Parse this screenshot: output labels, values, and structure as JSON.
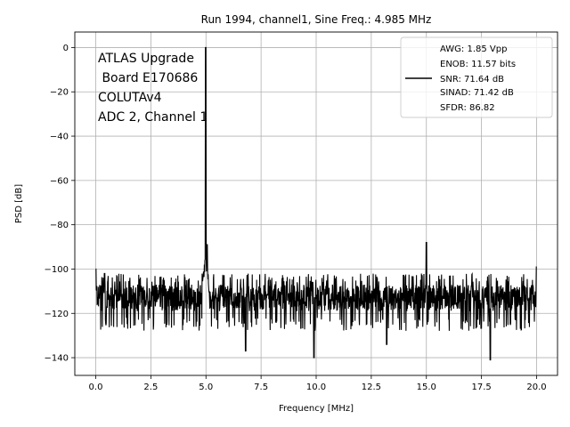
{
  "chart_data": {
    "type": "line",
    "title": "Run 1994, channel1, Sine Freq.: 4.985 MHz",
    "xlabel": "Frequency [MHz]",
    "ylabel": "PSD [dB]",
    "xlim": [
      -0.95,
      20.95
    ],
    "ylim": [
      -148,
      7
    ],
    "xticks": [
      0.0,
      2.5,
      5.0,
      7.5,
      10.0,
      12.5,
      15.0,
      17.5,
      20.0
    ],
    "xtick_labels": [
      "0.0",
      "2.5",
      "5.0",
      "7.5",
      "10.0",
      "12.5",
      "15.0",
      "17.5",
      "20.0"
    ],
    "yticks": [
      0,
      -20,
      -40,
      -60,
      -80,
      -100,
      -120,
      -140
    ],
    "ytick_labels": [
      "0",
      "−20",
      "−40",
      "−60",
      "−80",
      "−100",
      "−120",
      "−140"
    ],
    "grid": true,
    "annotation": [
      "ATLAS Upgrade",
      " Board E170686",
      "COLUTAv4",
      "ADC 2, Channel 1"
    ],
    "legend": {
      "placement": "top-right",
      "lines": [
        "AWG: 1.85 Vpp",
        "ENOB: 11.57 bits",
        "SNR: 71.64 dB",
        "SINAD: 71.42 dB",
        "SFDR: 86.82"
      ]
    },
    "series": [
      {
        "color": "#000000",
        "x_range": [
          0,
          20
        ],
        "noise_floor_mean": -113,
        "noise_floor_band": [
          -128,
          -102
        ],
        "peaks": [
          {
            "x": 4.985,
            "y": 0
          },
          {
            "x": 5.05,
            "y": -89
          },
          {
            "x": 15.0,
            "y": -88
          },
          {
            "x": 20.0,
            "y": -99
          },
          {
            "x": 0.4,
            "y": -102
          },
          {
            "x": 0.0,
            "y": -100
          }
        ],
        "dips": [
          {
            "x": 9.9,
            "y": -140
          },
          {
            "x": 17.9,
            "y": -141
          },
          {
            "x": 6.8,
            "y": -137
          },
          {
            "x": 13.2,
            "y": -134
          }
        ]
      }
    ]
  }
}
